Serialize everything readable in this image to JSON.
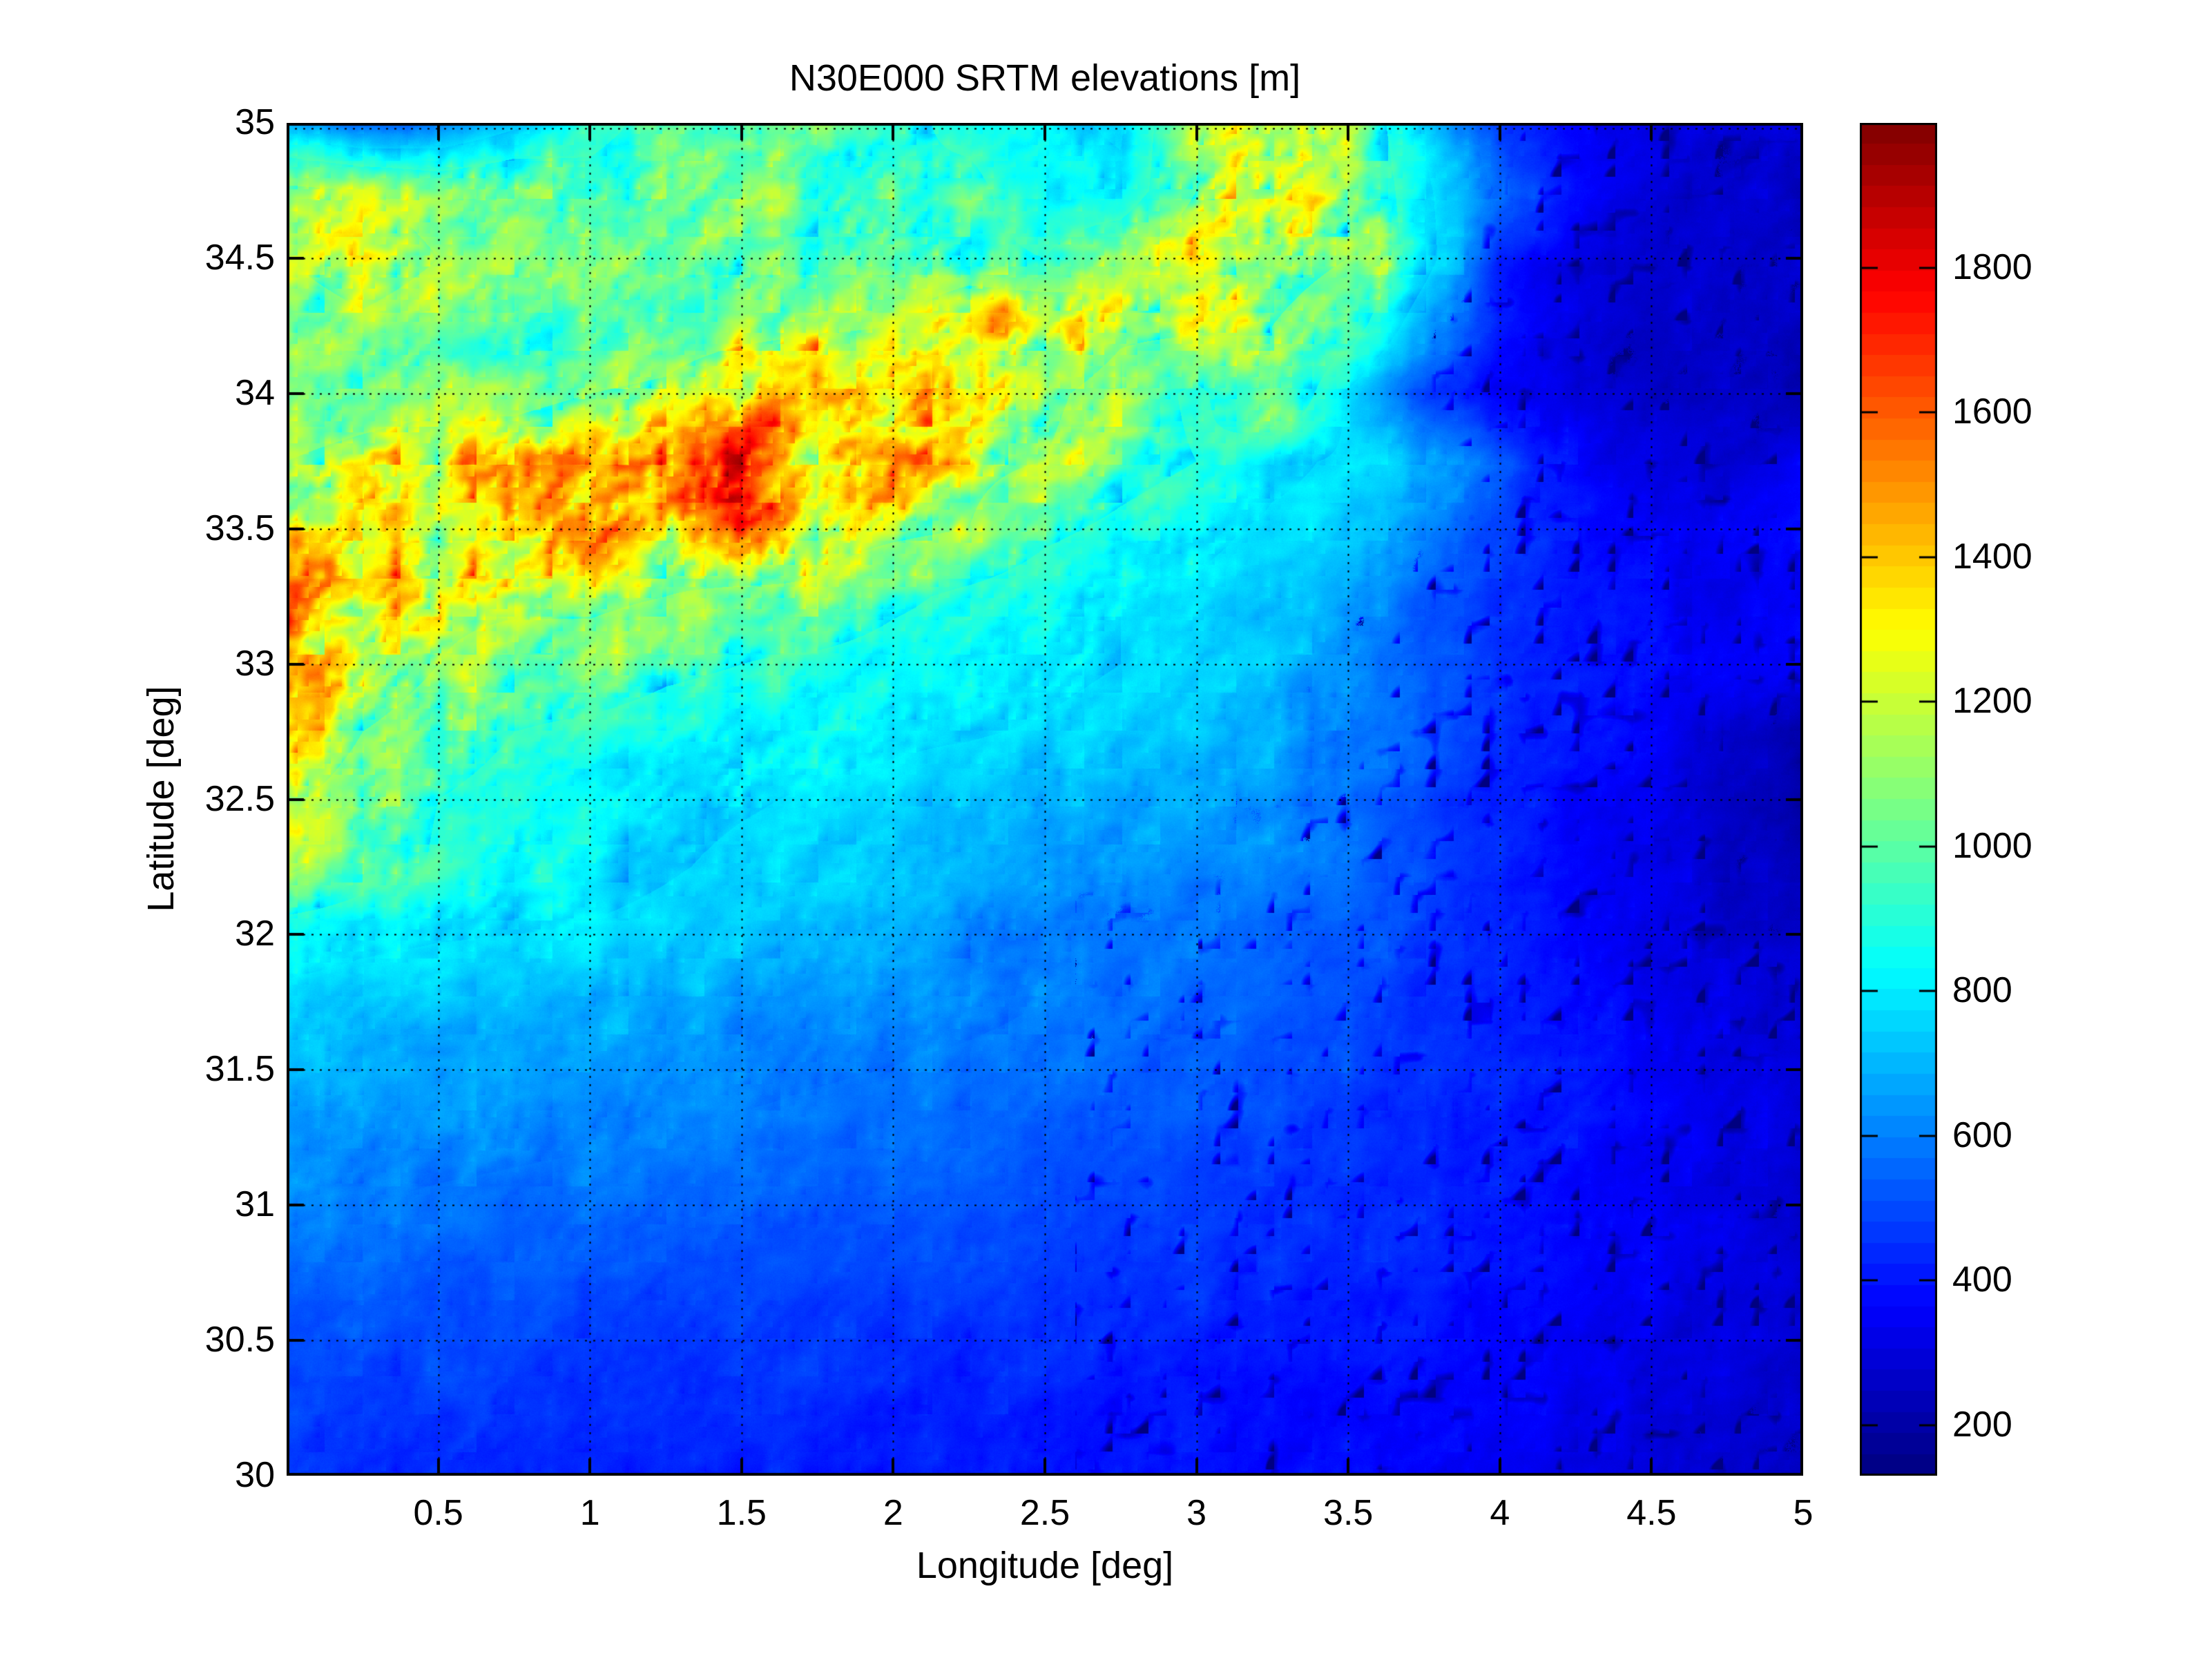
{
  "chart_data": {
    "type": "heatmap",
    "title": "N30E000 SRTM elevations [m]",
    "xlabel": "Longitude [deg]",
    "ylabel": "Latitude [deg]",
    "xlim": [
      0,
      5
    ],
    "ylim": [
      30,
      35
    ],
    "xticks": [
      0.5,
      1,
      1.5,
      2,
      2.5,
      3,
      3.5,
      4,
      4.5,
      5
    ],
    "yticks": [
      30,
      30.5,
      31,
      31.5,
      32,
      32.5,
      33,
      33.5,
      34,
      34.5,
      35
    ],
    "grid": "dotted",
    "legend_position": "none",
    "colormap": "jet",
    "color_range_m": [
      130,
      2000
    ],
    "colorbar_ticks": [
      200,
      400,
      600,
      800,
      1000,
      1200,
      1400,
      1600,
      1800
    ],
    "lon_deg": [
      0,
      0.25,
      0.5,
      0.75,
      1,
      1.25,
      1.5,
      1.75,
      2,
      2.25,
      2.5,
      2.75,
      3,
      3.25,
      3.5,
      3.75,
      4,
      4.25,
      4.5,
      4.75,
      5
    ],
    "lat_deg": [
      35,
      34.75,
      34.5,
      34.25,
      34,
      33.75,
      33.5,
      33.25,
      33,
      32.75,
      32.5,
      32.25,
      32,
      31.75,
      31.5,
      31.25,
      31,
      30.75,
      30.5,
      30.25,
      30
    ],
    "elevation_grid_m": [
      [
        700,
        560,
        620,
        780,
        950,
        1050,
        1100,
        1150,
        1050,
        950,
        850,
        800,
        1250,
        1300,
        1200,
        800,
        500,
        380,
        330,
        310,
        300
      ],
      [
        1300,
        1250,
        1150,
        1200,
        1050,
        1100,
        1200,
        1050,
        1000,
        1050,
        880,
        850,
        1250,
        1400,
        1250,
        850,
        600,
        400,
        320,
        290,
        280
      ],
      [
        1250,
        1400,
        1250,
        1150,
        1100,
        1100,
        1150,
        1050,
        1000,
        1050,
        1000,
        1200,
        1450,
        1350,
        1250,
        900,
        450,
        330,
        300,
        290,
        280
      ],
      [
        1100,
        1200,
        1100,
        1050,
        1050,
        1100,
        1150,
        1200,
        1250,
        1550,
        1500,
        1300,
        1300,
        1250,
        1100,
        700,
        420,
        330,
        300,
        280,
        270
      ],
      [
        1050,
        1100,
        1150,
        1100,
        1250,
        1300,
        1500,
        1600,
        1600,
        1450,
        1300,
        1150,
        950,
        1250,
        800,
        500,
        380,
        320,
        290,
        280,
        270
      ],
      [
        1250,
        1350,
        1450,
        1550,
        1700,
        1750,
        1800,
        1550,
        1600,
        1300,
        1250,
        1100,
        1000,
        850,
        800,
        750,
        550,
        400,
        320,
        300,
        380
      ],
      [
        1400,
        1450,
        1350,
        1500,
        1700,
        1500,
        1800,
        1350,
        1300,
        1250,
        1050,
        950,
        850,
        800,
        780,
        650,
        500,
        420,
        380,
        360,
        400
      ],
      [
        1600,
        1500,
        1300,
        1300,
        1300,
        1250,
        1150,
        1200,
        1050,
        950,
        870,
        820,
        800,
        780,
        700,
        550,
        470,
        420,
        380,
        360,
        370
      ],
      [
        1700,
        1450,
        1250,
        1150,
        1150,
        1050,
        1000,
        950,
        900,
        870,
        850,
        820,
        800,
        750,
        650,
        550,
        480,
        430,
        400,
        380,
        390
      ],
      [
        1550,
        1250,
        1100,
        1000,
        950,
        900,
        870,
        850,
        840,
        830,
        810,
        780,
        750,
        700,
        620,
        560,
        480,
        430,
        390,
        300,
        220
      ],
      [
        1300,
        1100,
        1000,
        930,
        880,
        850,
        830,
        810,
        790,
        760,
        720,
        700,
        700,
        650,
        600,
        520,
        450,
        400,
        350,
        280,
        230
      ],
      [
        1300,
        1100,
        980,
        900,
        860,
        830,
        800,
        780,
        760,
        730,
        690,
        660,
        640,
        630,
        600,
        520,
        450,
        390,
        340,
        300,
        270
      ],
      [
        880,
        850,
        830,
        820,
        810,
        790,
        760,
        730,
        700,
        660,
        630,
        610,
        600,
        580,
        550,
        500,
        440,
        390,
        345,
        305,
        275
      ],
      [
        790,
        765,
        748,
        733,
        718,
        703,
        688,
        670,
        655,
        640,
        620,
        600,
        580,
        560,
        530,
        490,
        450,
        410,
        370,
        335,
        305
      ],
      [
        740,
        715,
        698,
        685,
        672,
        658,
        645,
        630,
        618,
        605,
        590,
        575,
        558,
        535,
        510,
        480,
        450,
        415,
        380,
        348,
        315
      ],
      [
        690,
        668,
        652,
        640,
        630,
        618,
        605,
        592,
        580,
        568,
        555,
        540,
        525,
        505,
        485,
        462,
        438,
        410,
        380,
        348,
        315
      ],
      [
        640,
        620,
        605,
        595,
        585,
        575,
        565,
        555,
        545,
        535,
        525,
        512,
        500,
        485,
        468,
        448,
        425,
        400,
        372,
        342,
        312
      ],
      [
        580,
        565,
        555,
        548,
        540,
        532,
        525,
        517,
        510,
        503,
        495,
        487,
        478,
        468,
        455,
        440,
        418,
        395,
        368,
        340,
        310
      ],
      [
        540,
        530,
        520,
        512,
        505,
        498,
        490,
        483,
        476,
        470,
        462,
        455,
        447,
        437,
        427,
        415,
        395,
        375,
        350,
        325,
        300
      ],
      [
        510,
        500,
        490,
        483,
        477,
        470,
        463,
        457,
        450,
        444,
        437,
        430,
        422,
        412,
        402,
        390,
        375,
        358,
        338,
        315,
        295
      ],
      [
        480,
        470,
        460,
        455,
        450,
        445,
        440,
        435,
        430,
        425,
        420,
        415,
        410,
        400,
        390,
        375,
        360,
        345,
        325,
        305,
        290
      ]
    ]
  },
  "colors": {
    "background": "#ffffff",
    "axes": "#000000",
    "text": "#000000"
  }
}
